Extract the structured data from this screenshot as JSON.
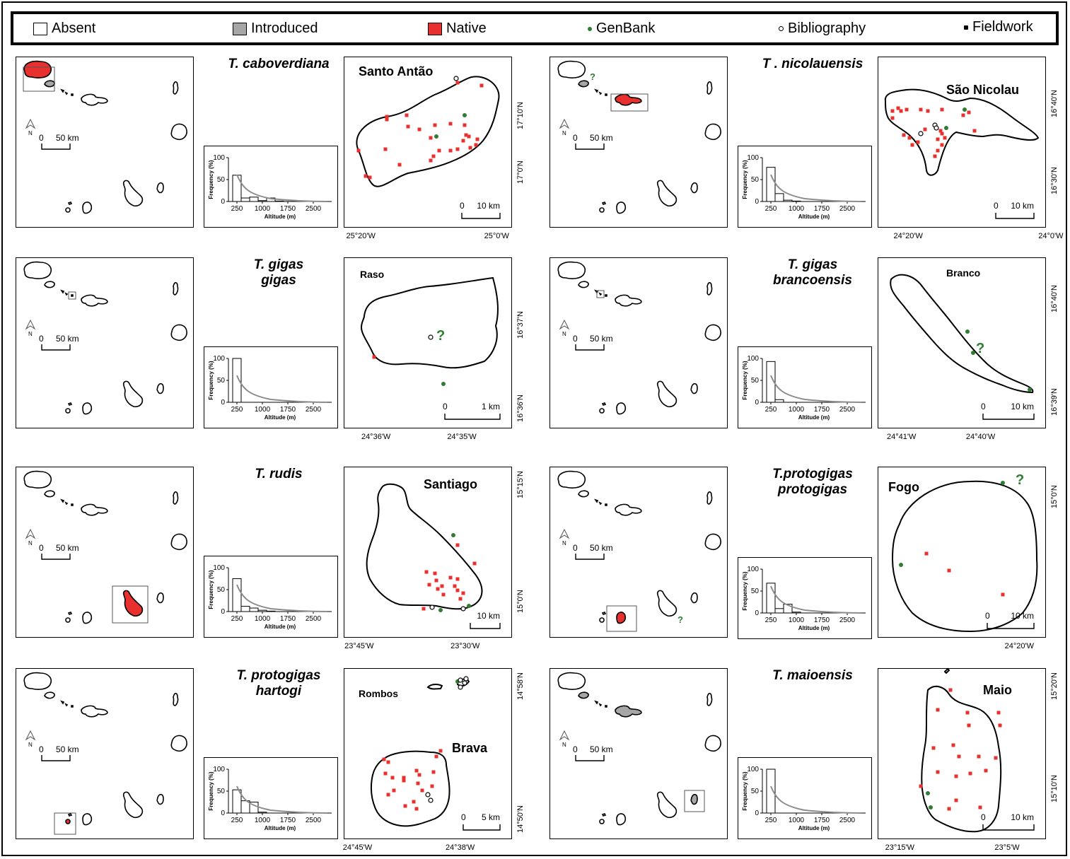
{
  "legend": {
    "absent": "Absent",
    "introduced": "Introduced",
    "native": "Native",
    "genbank": "GenBank",
    "bibliography": "Bibliography",
    "fieldwork": "Fieldwork"
  },
  "colors": {
    "native": "#e8312e",
    "introduced": "#a6a6a6",
    "genbank": "#2e7d32",
    "line": "#000000",
    "curve": "#8c8c8c"
  },
  "overview_scale": {
    "zero": "0",
    "dist": "50 km",
    "north": "N"
  },
  "histogram_text": {
    "ylabel": "Frequency (%)",
    "xlabel": "Altitude (m)",
    "yticks": [
      "100",
      "50",
      "0"
    ],
    "xticks": [
      "250",
      "1000",
      "1750",
      "2500"
    ]
  },
  "panels": [
    {
      "species": [
        "T. caboverdiana"
      ],
      "island": "Santo Antão",
      "scale": [
        "0",
        "10 km"
      ],
      "lon_labels": [
        "25°20'W",
        "25°0'W"
      ],
      "lat_labels": [
        "17°10'N",
        "17°0'N"
      ],
      "histogram_percent": [
        60,
        8,
        10,
        2,
        8,
        1,
        0
      ]
    },
    {
      "species": [
        "T . nicolauensis"
      ],
      "island": "São Nicolau",
      "scale": [
        "0",
        "10 km"
      ],
      "lon_labels": [
        "24°20'W",
        "24°0'W"
      ],
      "lat_labels": [
        "16°40'N",
        "16°30'N"
      ],
      "histogram_percent": [
        78,
        18,
        3,
        1,
        0,
        0,
        0
      ],
      "question_marks": 1
    },
    {
      "species": [
        "T. gigas",
        "gigas"
      ],
      "island": "Raso",
      "scale": [
        "0",
        "1 km"
      ],
      "lon_labels": [
        "24°36'W",
        "24°35'W"
      ],
      "lat_labels": [
        "16°37'N",
        "16°36'N"
      ],
      "histogram_percent": [
        100,
        0,
        0,
        0,
        0,
        0,
        0
      ],
      "question_marks": 1
    },
    {
      "species": [
        "T. gigas",
        "brancoensis"
      ],
      "island": "Branco",
      "scale": [
        "0",
        "10 km"
      ],
      "lon_labels": [
        "24°41'W",
        "24°40'W"
      ],
      "lat_labels": [
        "16°40'N",
        "16°39'N"
      ],
      "histogram_percent": [
        93,
        6,
        0,
        0,
        0,
        0,
        0
      ],
      "question_marks": 1
    },
    {
      "species": [
        "T. rudis"
      ],
      "island": "Santiago",
      "scale": [
        "",
        "10 km"
      ],
      "lon_labels": [
        "23°45'W",
        "23°30'W"
      ],
      "lat_labels": [
        "15°15'N",
        "15°0'N"
      ],
      "histogram_percent": [
        75,
        12,
        8,
        3,
        1,
        0,
        0
      ]
    },
    {
      "species": [
        "T.protogigas",
        "protogigas"
      ],
      "island": "Fogo",
      "scale": [
        "0",
        "10 km"
      ],
      "lon_labels": [
        "24°20'W"
      ],
      "lat_labels": [
        "15°0'N"
      ],
      "histogram_percent": [
        68,
        10,
        20,
        2,
        0,
        0,
        0
      ],
      "question_marks": 2
    },
    {
      "species": [
        "T. protogigas",
        "hartogi"
      ],
      "island": "Brava",
      "island2": "Rombos",
      "scale": [
        "0",
        "5 km"
      ],
      "lon_labels": [
        "24°45'W",
        "24°38'W"
      ],
      "lat_labels": [
        "14°58'N",
        "14°50'N"
      ],
      "histogram_percent": [
        53,
        28,
        25,
        2,
        0,
        0,
        0
      ]
    },
    {
      "species": [
        "T. maioensis"
      ],
      "island": "Maio",
      "scale": [
        "0",
        "10 km"
      ],
      "lon_labels": [
        "23°15'W",
        "23°5'W"
      ],
      "lat_labels": [
        "15°20'N",
        "15°10'N"
      ],
      "histogram_percent": [
        100,
        0,
        0,
        0,
        0,
        0,
        0
      ]
    }
  ]
}
